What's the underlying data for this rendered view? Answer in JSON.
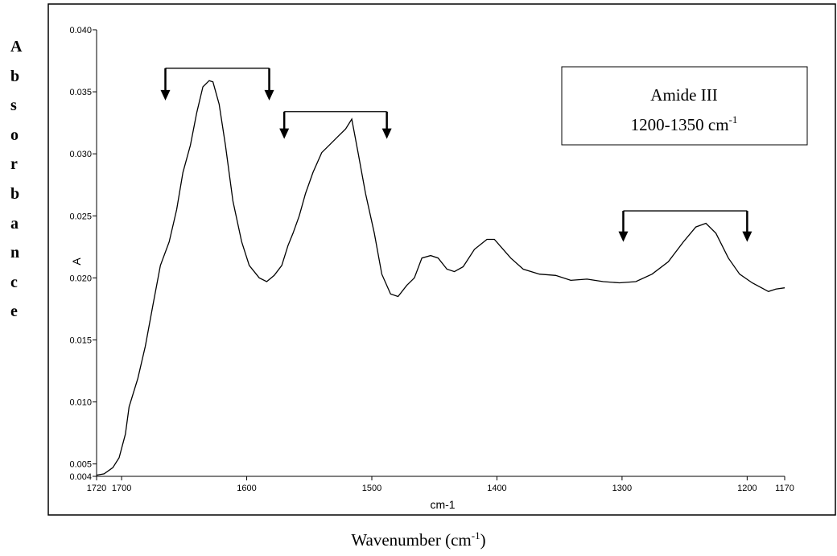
{
  "chart_data": {
    "type": "line",
    "xlabel": "cm-1",
    "ylabel": "A",
    "outer_ylabel": "Absorbance",
    "outer_xlabel": {
      "text": "Wavenumber (cm",
      "superscript": "-1",
      "suffix": ")"
    },
    "box": {
      "line1": "Amide III",
      "line2": "1200-1350 cm",
      "superscript": "-1"
    },
    "color": "#000000",
    "x": [
      1720,
      1714,
      1707,
      1702,
      1697,
      1694,
      1687,
      1681,
      1675,
      1669,
      1662,
      1656,
      1651,
      1645,
      1640,
      1635,
      1630,
      1627,
      1622,
      1617,
      1611,
      1604,
      1598,
      1590,
      1584,
      1578,
      1572,
      1567,
      1563,
      1558,
      1553,
      1547,
      1540,
      1534,
      1527,
      1521,
      1516,
      1511,
      1505,
      1498,
      1492,
      1485,
      1479,
      1472,
      1466,
      1460,
      1453,
      1447,
      1440,
      1434,
      1427,
      1418,
      1408,
      1402,
      1395,
      1389,
      1379,
      1366,
      1353,
      1341,
      1328,
      1315,
      1302,
      1289,
      1276,
      1263,
      1251,
      1241,
      1233,
      1225,
      1215,
      1206,
      1196,
      1183,
      1177,
      1170
    ],
    "values": [
      0.0041,
      0.0042,
      0.0047,
      0.0055,
      0.0074,
      0.0096,
      0.0119,
      0.0145,
      0.0178,
      0.021,
      0.0229,
      0.0255,
      0.0285,
      0.0307,
      0.0333,
      0.0354,
      0.0359,
      0.0358,
      0.034,
      0.0307,
      0.0262,
      0.0229,
      0.021,
      0.02,
      0.0197,
      0.0202,
      0.021,
      0.0226,
      0.0236,
      0.025,
      0.0268,
      0.0285,
      0.0301,
      0.0307,
      0.0314,
      0.032,
      0.0328,
      0.0301,
      0.0268,
      0.0236,
      0.0203,
      0.0187,
      0.0185,
      0.0194,
      0.02,
      0.0216,
      0.0218,
      0.0216,
      0.0207,
      0.0205,
      0.0209,
      0.0223,
      0.0231,
      0.0231,
      0.0223,
      0.0216,
      0.0207,
      0.0203,
      0.0202,
      0.0198,
      0.0199,
      0.0197,
      0.0196,
      0.0197,
      0.0203,
      0.0213,
      0.0229,
      0.0241,
      0.0244,
      0.0236,
      0.0216,
      0.0203,
      0.0196,
      0.0189,
      0.0191,
      0.0192
    ],
    "xlim": [
      1720,
      1170
    ],
    "ylim": [
      0.004,
      0.04
    ],
    "xticks": [
      1720,
      1700,
      1600,
      1500,
      1400,
      1300,
      1200,
      1170
    ],
    "yticks": [
      0.004,
      0.005,
      {
        "value": 0.01,
        "label": "0.010"
      },
      0.015,
      {
        "value": 0.02,
        "label": "0.020"
      },
      0.025,
      {
        "value": 0.03,
        "label": "0.030"
      },
      0.035,
      {
        "value": 0.04,
        "label": "0.040"
      }
    ],
    "ranges": [
      {
        "from": 1665,
        "to": 1582,
        "level": 0.0369,
        "tip": 0.0343
      },
      {
        "from": 1570,
        "to": 1488,
        "level": 0.0334,
        "tip": 0.0312
      },
      {
        "from": 1299,
        "to": 1200,
        "level": 0.0254,
        "tip": 0.0229
      }
    ]
  }
}
